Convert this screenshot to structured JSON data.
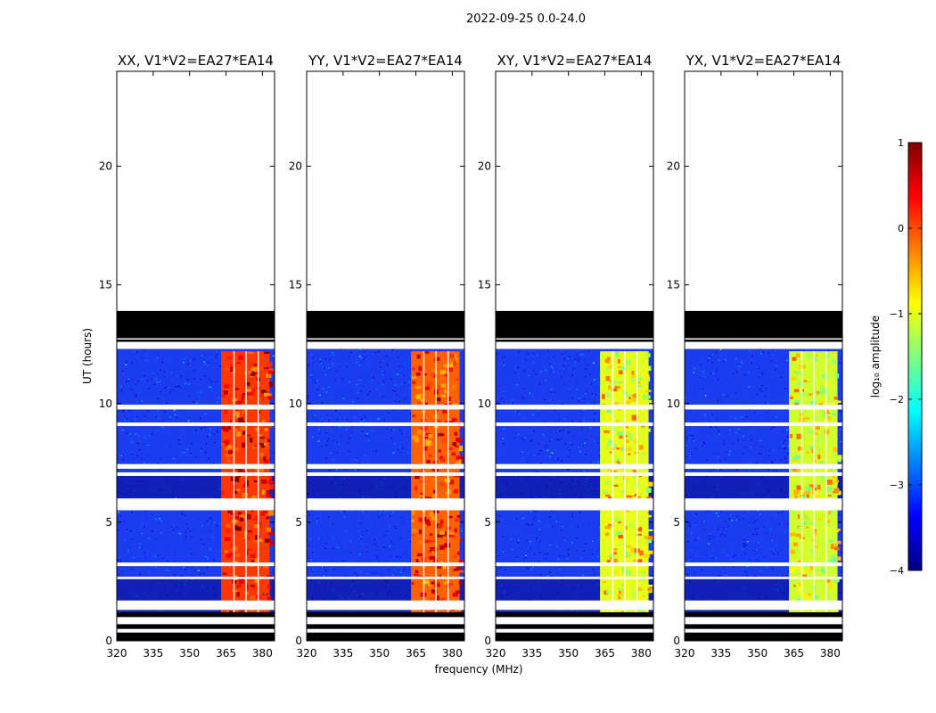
{
  "suptitle": "2022-09-25 0.0-24.0",
  "chart_data": [
    {
      "type": "heatmap",
      "title": "XX, V1*V2=EA27*EA14",
      "polarization": "XX",
      "xlabel": "",
      "ylabel": "UT (hours)",
      "xlim": [
        320,
        385
      ],
      "ylim": [
        0,
        24
      ],
      "xticks": [
        320,
        335,
        350,
        365,
        380
      ],
      "yticks": [
        0,
        5,
        10,
        15,
        20
      ],
      "empty_ut_range": [
        13.9,
        24
      ],
      "blank_ut_rows": [
        [
          0.35,
          0.5
        ],
        [
          0.7,
          1.0
        ],
        [
          1.3,
          1.7
        ],
        [
          2.6,
          2.7
        ],
        [
          3.15,
          3.3
        ],
        [
          5.5,
          6.0
        ],
        [
          6.95,
          7.1
        ],
        [
          7.25,
          7.45
        ],
        [
          9.05,
          9.2
        ],
        [
          9.75,
          9.95
        ],
        [
          12.3,
          12.45
        ]
      ],
      "flagged_ut_rows": [
        [
          0.5,
          0.7
        ],
        [
          1.0,
          1.2
        ],
        [
          12.6,
          13.9
        ]
      ],
      "rfi_band_mhz": [
        363,
        383
      ],
      "rfi_level": 0.5
    },
    {
      "type": "heatmap",
      "title": "YY, V1*V2=EA27*EA14",
      "polarization": "YY",
      "xlabel": "frequency (MHz)",
      "ylabel": "",
      "xlim": [
        320,
        385
      ],
      "ylim": [
        0,
        24
      ],
      "xticks": [
        320,
        335,
        350,
        365,
        380
      ],
      "yticks": [
        0,
        5,
        10,
        15,
        20
      ],
      "empty_ut_range": [
        13.9,
        24
      ],
      "blank_ut_rows": [
        [
          0.35,
          0.5
        ],
        [
          0.7,
          1.0
        ],
        [
          1.3,
          1.7
        ],
        [
          2.6,
          2.7
        ],
        [
          3.15,
          3.3
        ],
        [
          5.5,
          6.0
        ],
        [
          6.95,
          7.1
        ],
        [
          7.25,
          7.45
        ],
        [
          9.05,
          9.2
        ],
        [
          9.75,
          9.95
        ],
        [
          12.3,
          12.45
        ]
      ],
      "flagged_ut_rows": [
        [
          0.5,
          0.7
        ],
        [
          1.0,
          1.2
        ],
        [
          12.6,
          13.9
        ]
      ],
      "rfi_band_mhz": [
        363,
        383
      ],
      "rfi_level": 0.3
    },
    {
      "type": "heatmap",
      "title": "XY, V1*V2=EA27*EA14",
      "polarization": "XY",
      "xlabel": "",
      "ylabel": "",
      "xlim": [
        320,
        385
      ],
      "ylim": [
        0,
        24
      ],
      "xticks": [
        320,
        335,
        350,
        365,
        380
      ],
      "yticks": [
        0,
        5,
        10,
        15,
        20
      ],
      "empty_ut_range": [
        13.9,
        24
      ],
      "blank_ut_rows": [
        [
          0.35,
          0.5
        ],
        [
          0.7,
          1.0
        ],
        [
          1.3,
          1.7
        ],
        [
          2.6,
          2.7
        ],
        [
          3.15,
          3.3
        ],
        [
          5.5,
          6.0
        ],
        [
          6.95,
          7.1
        ],
        [
          7.25,
          7.45
        ],
        [
          9.05,
          9.2
        ],
        [
          9.75,
          9.95
        ],
        [
          12.3,
          12.45
        ]
      ],
      "flagged_ut_rows": [
        [
          0.5,
          0.7
        ],
        [
          1.0,
          1.2
        ],
        [
          12.6,
          13.9
        ]
      ],
      "rfi_band_mhz": [
        363,
        383
      ],
      "rfi_level": -0.6
    },
    {
      "type": "heatmap",
      "title": "YX, V1*V2=EA27*EA14",
      "polarization": "YX",
      "xlabel": "",
      "ylabel": "",
      "xlim": [
        320,
        385
      ],
      "ylim": [
        0,
        24
      ],
      "xticks": [
        320,
        335,
        350,
        365,
        380
      ],
      "yticks": [
        0,
        5,
        10,
        15,
        20
      ],
      "empty_ut_range": [
        13.9,
        24
      ],
      "blank_ut_rows": [
        [
          0.35,
          0.5
        ],
        [
          0.7,
          1.0
        ],
        [
          1.3,
          1.7
        ],
        [
          2.6,
          2.7
        ],
        [
          3.15,
          3.3
        ],
        [
          5.5,
          6.0
        ],
        [
          6.95,
          7.1
        ],
        [
          7.25,
          7.45
        ],
        [
          9.05,
          9.2
        ],
        [
          9.75,
          9.95
        ],
        [
          12.3,
          12.45
        ]
      ],
      "flagged_ut_rows": [
        [
          0.5,
          0.7
        ],
        [
          1.0,
          1.2
        ],
        [
          12.6,
          13.9
        ]
      ],
      "rfi_band_mhz": [
        363,
        383
      ],
      "rfi_level": -0.7
    }
  ],
  "colorbar": {
    "label": "log₁₀ amplitude",
    "min": -4,
    "max": 1,
    "ticks": [
      "1",
      "0",
      "−1",
      "−2",
      "−3",
      "−4"
    ],
    "tick_values": [
      1,
      0,
      -1,
      -2,
      -3,
      -4
    ],
    "colormap": "jet",
    "colors": [
      "#00007f",
      "#0000ff",
      "#007fff",
      "#00ffff",
      "#7fff7f",
      "#ffff00",
      "#ff7f00",
      "#ff0000",
      "#7f0000"
    ]
  }
}
